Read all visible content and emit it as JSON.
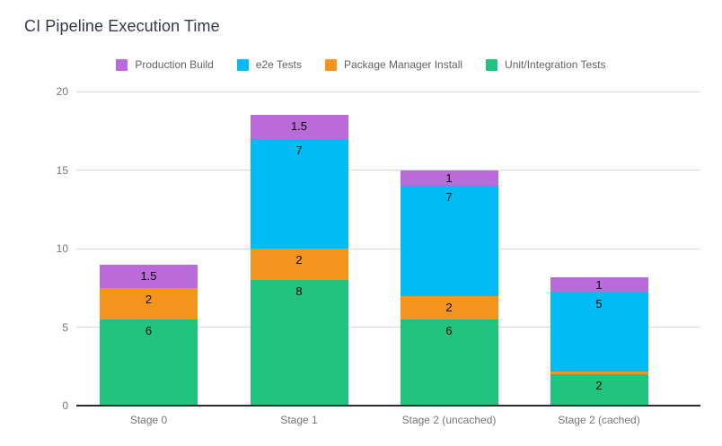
{
  "chart_data": {
    "type": "bar",
    "stacked": true,
    "title": "CI Pipeline Execution Time",
    "categories": [
      "Stage 0",
      "Stage 1",
      "Stage 2 (uncached)",
      "Stage 2 (cached)"
    ],
    "series": [
      {
        "name": "Unit/Integration Tests",
        "color": "#21c47e",
        "values": [
          5.5,
          8,
          5.5,
          2
        ],
        "data_labels": [
          "6",
          "8",
          "6",
          "2"
        ]
      },
      {
        "name": "Package Manager Install",
        "color": "#f2941d",
        "values": [
          2,
          2,
          1.5,
          0.2
        ],
        "data_labels": [
          "2",
          "2",
          "2",
          ""
        ]
      },
      {
        "name": "e2e Tests",
        "color": "#00bcf2",
        "values": [
          0,
          7,
          7,
          5
        ],
        "data_labels": [
          "",
          "7",
          "7",
          "5"
        ]
      },
      {
        "name": "Production Build",
        "color": "#bb6bd9",
        "values": [
          1.5,
          1.5,
          1,
          1
        ],
        "data_labels": [
          "1.5",
          "1.5",
          "1",
          "1"
        ]
      }
    ],
    "legend": {
      "position": "top",
      "items": [
        {
          "label": "Production Build",
          "color": "#bb6bd9"
        },
        {
          "label": "e2e Tests",
          "color": "#00bcf2"
        },
        {
          "label": "Package Manager Install",
          "color": "#f2941d"
        },
        {
          "label": "Unit/Integration Tests",
          "color": "#21c47e"
        }
      ]
    },
    "y_axis": {
      "ticks": [
        0,
        5,
        10,
        15,
        20
      ],
      "range": [
        0,
        20
      ],
      "grid": true
    },
    "x_axis": {
      "labels": [
        "Stage 0",
        "Stage 1",
        "Stage 2 (uncached)",
        "Stage 2 (cached)"
      ]
    },
    "colors": {
      "background": "#ffffff",
      "title": "#333b49",
      "axis_labels": "#757575",
      "legend_labels": "#5f6368",
      "value_labels": "#000000",
      "gridlines": "#d9d9d9",
      "baseline": "#2b2b2b"
    }
  }
}
